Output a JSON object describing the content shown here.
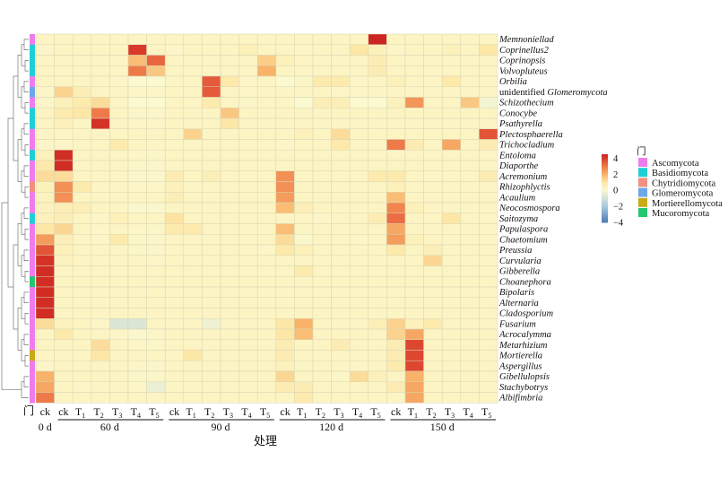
{
  "chart_data": {
    "type": "heatmap",
    "xlabel": "处理",
    "phylum_axis_label": "门",
    "color_scale": {
      "min": -4,
      "max": 4.5,
      "ticks": [
        "4",
        "2",
        "0",
        "−2",
        "−4"
      ],
      "tick_values": [
        4,
        2,
        0,
        -2,
        -4
      ],
      "stops": [
        [
          -4,
          "#4a7ab7"
        ],
        [
          -2,
          "#a9c9df"
        ],
        [
          0,
          "#fbf9d0"
        ],
        [
          1,
          "#fde7a6"
        ],
        [
          2,
          "#f8b269"
        ],
        [
          3,
          "#ee7a49"
        ],
        [
          4,
          "#d93a2a"
        ],
        [
          4.5,
          "#cc2522"
        ]
      ]
    },
    "columns": [
      {
        "main": "ck",
        "sub": ""
      },
      {
        "main": "ck",
        "sub": ""
      },
      {
        "main": "T",
        "sub": "1"
      },
      {
        "main": "T",
        "sub": "2"
      },
      {
        "main": "T",
        "sub": "3"
      },
      {
        "main": "T",
        "sub": "4"
      },
      {
        "main": "T",
        "sub": "5"
      },
      {
        "main": "ck",
        "sub": ""
      },
      {
        "main": "T",
        "sub": "1"
      },
      {
        "main": "T",
        "sub": "2"
      },
      {
        "main": "T",
        "sub": "3"
      },
      {
        "main": "T",
        "sub": "4"
      },
      {
        "main": "T",
        "sub": "5"
      },
      {
        "main": "ck",
        "sub": ""
      },
      {
        "main": "T",
        "sub": "1"
      },
      {
        "main": "T",
        "sub": "2"
      },
      {
        "main": "T",
        "sub": "3"
      },
      {
        "main": "T",
        "sub": "4"
      },
      {
        "main": "T",
        "sub": "5"
      },
      {
        "main": "ck",
        "sub": ""
      },
      {
        "main": "T",
        "sub": "1"
      },
      {
        "main": "T",
        "sub": "2"
      },
      {
        "main": "T",
        "sub": "3"
      },
      {
        "main": "T",
        "sub": "4"
      },
      {
        "main": "T",
        "sub": "5"
      }
    ],
    "groups": [
      {
        "label": "0 d",
        "start": 0,
        "end": 0,
        "underline": false
      },
      {
        "label": "60 d",
        "start": 1,
        "end": 6,
        "underline": true
      },
      {
        "label": "90 d",
        "start": 7,
        "end": 12,
        "underline": true
      },
      {
        "label": "120 d",
        "start": 13,
        "end": 18,
        "underline": true
      },
      {
        "label": "150 d",
        "start": 19,
        "end": 24,
        "underline": true
      }
    ],
    "phyla": [
      {
        "name": "Ascomycota",
        "color": "#ef7cef"
      },
      {
        "name": "Basidiomycota",
        "color": "#1fcfd6"
      },
      {
        "name": "Chytridiomycota",
        "color": "#f28f7f"
      },
      {
        "name": "Glomeromycota",
        "color": "#6ea7e8"
      },
      {
        "name": "Mortierellomycota",
        "color": "#c9a915"
      },
      {
        "name": "Mucoromycota",
        "color": "#22c770"
      }
    ],
    "rows": [
      {
        "name": "Memnoniellad",
        "prefix": "",
        "phylum": 0
      },
      {
        "name": "Coprinellus2",
        "prefix": "",
        "phylum": 1
      },
      {
        "name": "Coprinopsis",
        "prefix": "",
        "phylum": 1
      },
      {
        "name": "Volvopluteus",
        "prefix": "",
        "phylum": 1
      },
      {
        "name": "Orbilia",
        "prefix": "",
        "phylum": 0
      },
      {
        "name": "Glomeromycota",
        "prefix": "unidentified",
        "phylum": 3
      },
      {
        "name": "Schizothecium",
        "prefix": "",
        "phylum": 0
      },
      {
        "name": "Conocybe",
        "prefix": "",
        "phylum": 1
      },
      {
        "name": "Psathyrella",
        "prefix": "",
        "phylum": 1
      },
      {
        "name": "Plectosphaerella",
        "prefix": "",
        "phylum": 0
      },
      {
        "name": "Trichocladium",
        "prefix": "",
        "phylum": 0
      },
      {
        "name": "Entoloma",
        "prefix": "",
        "phylum": 1
      },
      {
        "name": "Diaporthe",
        "prefix": "",
        "phylum": 0
      },
      {
        "name": "Acremonium",
        "prefix": "",
        "phylum": 0
      },
      {
        "name": "Rhizophlyctis",
        "prefix": "",
        "phylum": 2
      },
      {
        "name": "Acaulium",
        "prefix": "",
        "phylum": 0
      },
      {
        "name": "Neocosmospora",
        "prefix": "",
        "phylum": 0
      },
      {
        "name": "Saitozyma",
        "prefix": "",
        "phylum": 1
      },
      {
        "name": "Papulaspora",
        "prefix": "",
        "phylum": 0
      },
      {
        "name": "Chaetomium",
        "prefix": "",
        "phylum": 0
      },
      {
        "name": "Preussia",
        "prefix": "",
        "phylum": 0
      },
      {
        "name": "Curvularia",
        "prefix": "",
        "phylum": 0
      },
      {
        "name": "Gibberella",
        "prefix": "",
        "phylum": 0
      },
      {
        "name": "Choanephora",
        "prefix": "",
        "phylum": 5
      },
      {
        "name": "Bipolaris",
        "prefix": "",
        "phylum": 0
      },
      {
        "name": "Alternaria",
        "prefix": "",
        "phylum": 0
      },
      {
        "name": "Cladosporium",
        "prefix": "",
        "phylum": 0
      },
      {
        "name": "Fusarium",
        "prefix": "",
        "phylum": 0
      },
      {
        "name": "Acrocalymma",
        "prefix": "",
        "phylum": 0
      },
      {
        "name": "Metarhizium",
        "prefix": "",
        "phylum": 0
      },
      {
        "name": "Mortierella",
        "prefix": "",
        "phylum": 4
      },
      {
        "name": "Aspergillus",
        "prefix": "",
        "phylum": 0
      },
      {
        "name": "Gibellulopsis",
        "prefix": "",
        "phylum": 0
      },
      {
        "name": "Stachybotrys",
        "prefix": "",
        "phylum": 0
      },
      {
        "name": "Albifimbria",
        "prefix": "",
        "phylum": 0
      }
    ],
    "values": [
      [
        0.3,
        0.3,
        0.3,
        0.3,
        0.3,
        0.3,
        0.3,
        0.3,
        0.3,
        0.3,
        0.3,
        0.3,
        0.3,
        0.3,
        0.3,
        0.3,
        0.3,
        0.3,
        4.5,
        0.3,
        0.3,
        0.3,
        0.3,
        0.3,
        0.3
      ],
      [
        0.2,
        0.3,
        0.3,
        0.3,
        0.3,
        4.0,
        0.3,
        0.2,
        0.3,
        0.3,
        0.3,
        0.5,
        0.3,
        0.3,
        0.2,
        0.3,
        0.3,
        1.0,
        0.5,
        0.2,
        0.3,
        0.3,
        0.5,
        0.3,
        1.0
      ],
      [
        0.3,
        0.3,
        0.3,
        0.3,
        0.3,
        1.8,
        3.3,
        0.3,
        0.3,
        0.3,
        0.3,
        0.3,
        1.5,
        0.5,
        0.3,
        0.3,
        0.3,
        0.3,
        0.7,
        0.3,
        0.3,
        0.3,
        0.3,
        0.3,
        0.3
      ],
      [
        0.3,
        0.3,
        0.3,
        0.3,
        0.3,
        3.0,
        1.6,
        0.3,
        0.3,
        0.3,
        0.3,
        0.3,
        2.0,
        0.3,
        0.3,
        0.3,
        0.3,
        0.3,
        0.7,
        0.3,
        0.3,
        0.3,
        0.3,
        0.3,
        0.3
      ],
      [
        0.3,
        0.3,
        0.3,
        0.3,
        0.2,
        0.0,
        0.0,
        0.3,
        0.3,
        3.5,
        0.9,
        0.2,
        0.3,
        0.0,
        0.2,
        0.8,
        0.8,
        0.2,
        0.3,
        0.5,
        0.3,
        0.3,
        0.9,
        0.3,
        0.3
      ],
      [
        0.2,
        1.4,
        0.6,
        0.3,
        0.3,
        0.2,
        0.2,
        0.3,
        0.3,
        3.5,
        0.3,
        0.2,
        0.3,
        0.3,
        0.3,
        0.3,
        0.2,
        0.2,
        0.3,
        0.3,
        0.3,
        0.3,
        0.3,
        0.3,
        0.3
      ],
      [
        0.2,
        0.5,
        0.8,
        1.2,
        0.3,
        0.0,
        0.0,
        0.3,
        0.3,
        0.8,
        0.3,
        0.2,
        0.3,
        0.3,
        0.0,
        0.6,
        0.6,
        0.0,
        0.0,
        0.5,
        2.5,
        0.3,
        0.3,
        1.6,
        -0.2
      ],
      [
        0.3,
        0.8,
        1.0,
        3.0,
        0.3,
        0.2,
        0.2,
        0.3,
        0.3,
        0.3,
        1.6,
        0.3,
        0.3,
        0.3,
        0.3,
        0.3,
        0.3,
        0.3,
        0.3,
        0.3,
        0.3,
        0.3,
        0.3,
        0.3,
        0.3
      ],
      [
        0.3,
        0.5,
        0.3,
        4.2,
        0.3,
        0.2,
        0.2,
        0.3,
        0.3,
        0.3,
        1.0,
        0.3,
        0.3,
        0.3,
        0.3,
        0.3,
        0.3,
        0.3,
        0.3,
        0.3,
        0.3,
        0.3,
        0.3,
        0.3,
        0.3
      ],
      [
        0.3,
        0.3,
        0.3,
        0.3,
        0.3,
        0.3,
        0.3,
        0.3,
        1.4,
        0.3,
        0.3,
        0.3,
        0.3,
        0.3,
        0.5,
        0.3,
        1.2,
        0.3,
        0.3,
        0.3,
        0.3,
        0.3,
        0.3,
        0.3,
        3.6
      ],
      [
        0.2,
        0.2,
        0.3,
        0.3,
        0.8,
        0.3,
        0.3,
        0.3,
        0.3,
        0.3,
        0.3,
        0.3,
        0.3,
        0.2,
        0.3,
        0.3,
        0.9,
        0.3,
        0.3,
        3.0,
        0.7,
        0.3,
        2.2,
        0.3,
        0.7
      ],
      [
        0.5,
        4.3,
        0.3,
        0.3,
        0.3,
        0.2,
        0.2,
        0.3,
        0.3,
        0.3,
        0.3,
        0.3,
        0.3,
        0.3,
        0.3,
        0.3,
        0.3,
        0.3,
        0.3,
        0.3,
        0.3,
        0.3,
        0.3,
        0.3,
        0.3
      ],
      [
        0.9,
        4.3,
        0.3,
        0.3,
        0.3,
        0.2,
        0.2,
        0.3,
        0.3,
        0.3,
        0.3,
        0.3,
        0.3,
        0.3,
        0.3,
        0.3,
        0.3,
        0.3,
        0.3,
        0.3,
        0.3,
        0.3,
        0.3,
        0.3,
        0.3
      ],
      [
        1.2,
        1.2,
        0.3,
        0.3,
        0.3,
        0.1,
        0.1,
        0.7,
        0.3,
        0.6,
        0.3,
        0.3,
        0.3,
        2.6,
        0.3,
        0.3,
        0.3,
        0.3,
        0.8,
        0.8,
        0.3,
        0.2,
        0.3,
        0.3,
        0.7
      ],
      [
        0.5,
        2.6,
        0.8,
        0.3,
        0.3,
        0.2,
        0.2,
        0.5,
        0.3,
        0.3,
        0.3,
        0.3,
        0.3,
        2.6,
        0.3,
        0.3,
        0.3,
        0.3,
        0.3,
        0.5,
        0.3,
        0.3,
        0.3,
        0.3,
        0.3
      ],
      [
        0.4,
        2.6,
        0.3,
        0.3,
        0.3,
        0.3,
        0.3,
        0.6,
        0.3,
        0.3,
        0.3,
        0.3,
        0.3,
        2.4,
        0.3,
        0.3,
        0.3,
        0.3,
        0.3,
        1.8,
        0.3,
        0.3,
        0.3,
        0.3,
        0.3
      ],
      [
        0.4,
        0.6,
        0.6,
        0.3,
        0.3,
        0.1,
        0.1,
        0.3,
        0.3,
        0.3,
        0.3,
        0.3,
        0.3,
        1.8,
        0.6,
        0.3,
        0.3,
        0.3,
        0.3,
        2.8,
        0.5,
        0.3,
        0.3,
        0.3,
        0.3
      ],
      [
        0.5,
        0.6,
        0.3,
        0.2,
        0.5,
        0.3,
        0.3,
        1.1,
        0.3,
        0.3,
        0.3,
        0.3,
        0.3,
        0.3,
        0.3,
        0.2,
        0.3,
        0.3,
        0.7,
        3.2,
        0.3,
        0.3,
        1.0,
        0.3,
        0.3
      ],
      [
        1.0,
        1.3,
        0.3,
        0.2,
        0.3,
        0.2,
        0.2,
        0.8,
        0.8,
        0.3,
        0.3,
        0.3,
        0.3,
        1.8,
        0.3,
        0.3,
        0.3,
        0.3,
        0.3,
        2.2,
        0.3,
        0.3,
        0.3,
        0.3,
        0.3
      ],
      [
        2.4,
        0.6,
        0.3,
        0.2,
        0.8,
        0.2,
        0.2,
        0.3,
        0.3,
        0.3,
        0.3,
        0.3,
        0.3,
        1.2,
        0.1,
        0.3,
        0.3,
        0.2,
        0.3,
        2.4,
        0.5,
        0.3,
        0.3,
        0.3,
        0.3
      ],
      [
        3.6,
        0.5,
        0.3,
        0.3,
        0.3,
        0.2,
        0.2,
        0.3,
        0.3,
        0.3,
        0.3,
        0.3,
        0.2,
        0.9,
        0.5,
        0.3,
        0.3,
        0.3,
        0.3,
        0.9,
        0.3,
        0.6,
        0.3,
        0.3,
        0.3
      ],
      [
        4.2,
        0.4,
        0.3,
        0.3,
        0.3,
        0.3,
        0.2,
        0.3,
        0.3,
        0.3,
        0.3,
        0.3,
        0.3,
        0.3,
        0.3,
        0.3,
        0.3,
        0.3,
        0.3,
        0.3,
        0.3,
        1.3,
        0.3,
        0.3,
        0.3
      ],
      [
        4.3,
        0.3,
        0.3,
        0.3,
        0.3,
        0.3,
        0.3,
        0.3,
        0.3,
        0.3,
        0.3,
        0.3,
        0.3,
        0.3,
        0.8,
        0.3,
        0.3,
        0.3,
        0.3,
        0.3,
        0.3,
        0.3,
        0.3,
        0.3,
        0.3
      ],
      [
        4.3,
        0.3,
        0.3,
        0.3,
        0.3,
        0.3,
        0.3,
        0.3,
        0.3,
        0.3,
        0.3,
        0.3,
        0.3,
        0.3,
        0.3,
        0.3,
        0.3,
        0.3,
        0.3,
        0.3,
        0.3,
        0.3,
        0.3,
        0.3,
        0.3
      ],
      [
        4.3,
        0.3,
        0.3,
        0.3,
        0.3,
        0.3,
        0.3,
        0.3,
        0.3,
        0.3,
        0.3,
        0.3,
        0.3,
        0.3,
        0.3,
        0.3,
        0.3,
        0.3,
        0.3,
        0.3,
        0.3,
        0.3,
        0.3,
        0.3,
        0.3
      ],
      [
        4.3,
        0.3,
        0.3,
        0.3,
        0.3,
        0.3,
        0.3,
        0.3,
        0.3,
        0.3,
        0.3,
        0.3,
        0.3,
        0.3,
        0.3,
        0.3,
        0.3,
        0.3,
        0.3,
        0.3,
        0.3,
        0.3,
        0.3,
        0.3,
        0.3
      ],
      [
        4.3,
        0.3,
        0.3,
        0.3,
        0.3,
        0.3,
        0.3,
        0.3,
        0.3,
        0.3,
        0.3,
        0.3,
        0.3,
        0.3,
        0.3,
        0.3,
        0.3,
        0.3,
        0.3,
        0.3,
        0.3,
        0.3,
        0.3,
        0.3,
        0.3
      ],
      [
        1.2,
        0.4,
        0.3,
        0.2,
        -0.8,
        -0.8,
        0.3,
        0.3,
        0.3,
        -0.3,
        0.3,
        0.3,
        0.3,
        1.0,
        2.0,
        0.3,
        0.3,
        0.3,
        0.6,
        1.4,
        0.5,
        0.8,
        0.3,
        0.3,
        0.3
      ],
      [
        0.3,
        0.9,
        0.3,
        0.3,
        0.2,
        0.1,
        0.2,
        0.3,
        0.3,
        0.3,
        0.3,
        0.3,
        0.3,
        1.0,
        1.8,
        0.3,
        0.3,
        0.3,
        0.3,
        1.4,
        2.2,
        0.3,
        0.3,
        0.3,
        0.3
      ],
      [
        0.3,
        0.3,
        0.3,
        1.2,
        0.3,
        0.2,
        0.2,
        0.3,
        0.3,
        0.3,
        0.3,
        0.3,
        0.3,
        0.7,
        0.3,
        0.3,
        0.7,
        0.3,
        0.3,
        0.7,
        3.8,
        0.3,
        0.3,
        0.3,
        0.3
      ],
      [
        0.3,
        0.3,
        0.3,
        1.0,
        0.3,
        0.3,
        0.3,
        0.3,
        1.0,
        0.3,
        0.3,
        0.3,
        0.3,
        0.7,
        0.3,
        0.3,
        0.3,
        0.3,
        0.3,
        0.7,
        3.8,
        0.3,
        0.3,
        0.3,
        0.3
      ],
      [
        0.2,
        0.3,
        0.3,
        0.3,
        0.3,
        0.2,
        0.2,
        0.3,
        0.3,
        0.3,
        0.3,
        0.3,
        0.3,
        0.5,
        0.3,
        0.3,
        0.3,
        0.2,
        0.3,
        0.8,
        3.8,
        0.3,
        0.3,
        0.3,
        0.3
      ],
      [
        2.0,
        0.3,
        0.3,
        0.3,
        0.3,
        0.2,
        0.2,
        0.3,
        0.3,
        0.3,
        0.3,
        0.3,
        0.3,
        1.3,
        0.3,
        0.3,
        0.2,
        1.2,
        0.5,
        0.3,
        2.0,
        0.3,
        0.3,
        0.3,
        0.3
      ],
      [
        2.2,
        0.3,
        0.2,
        0.3,
        0.3,
        0.2,
        -0.4,
        0.3,
        0.3,
        0.3,
        0.3,
        0.3,
        0.3,
        0.7,
        0.7,
        0.3,
        0.3,
        0.3,
        0.3,
        0.7,
        2.2,
        0.3,
        0.3,
        0.3,
        0.3
      ],
      [
        3.0,
        0.3,
        0.3,
        0.3,
        0.3,
        0.3,
        0.3,
        0.3,
        0.3,
        0.3,
        0.3,
        0.3,
        0.3,
        0.3,
        0.8,
        0.3,
        0.3,
        0.3,
        0.3,
        0.3,
        2.2,
        0.3,
        0.3,
        0.3,
        0.3
      ]
    ]
  }
}
